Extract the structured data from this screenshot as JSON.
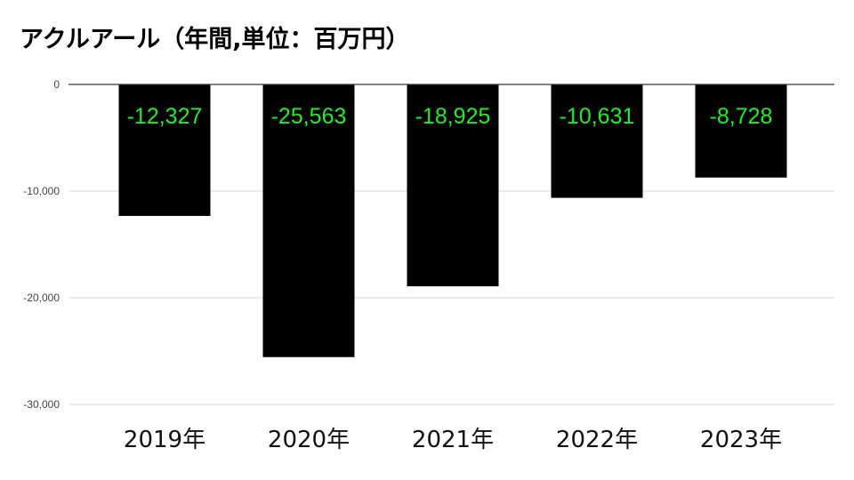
{
  "chart_data": {
    "type": "bar",
    "title": "アクルアール（年間,単位：百万円）",
    "xlabel": "",
    "ylabel": "",
    "categories": [
      "2019年",
      "2020年",
      "2021年",
      "2022年",
      "2023年"
    ],
    "values": [
      -12327,
      -25563,
      -18925,
      -10631,
      -8728
    ],
    "data_labels": [
      "-12,327",
      "-25,563",
      "-18,925",
      "-10,631",
      "-8,728"
    ],
    "ylim": [
      -30000,
      0
    ],
    "yticks": [
      0,
      -10000,
      -20000,
      -30000
    ],
    "ytick_labels": [
      "0",
      "-10,000",
      "-20,000",
      "-30,000"
    ],
    "grid": true,
    "legend": "none",
    "colors": {
      "bar": "#000000",
      "data_label": "#22ee22",
      "grid": "#d9d9d9",
      "axis": "#333333"
    }
  }
}
